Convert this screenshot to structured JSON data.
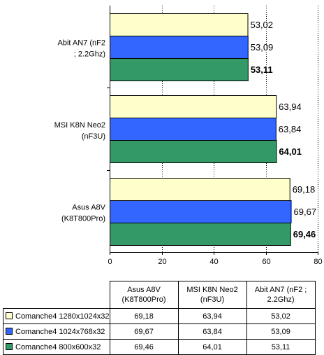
{
  "chart_data": {
    "type": "bar",
    "orientation": "horizontal",
    "categories": [
      "Abit AN7 (nF2 ; 2.2Ghz)",
      "MSI K8N Neo2 (nF3U)",
      "Asus A8V (K8T800Pro)"
    ],
    "category_label_lines": [
      [
        "Abit AN7 (nF2",
        "; 2.2Ghz)"
      ],
      [
        "MSI K8N Neo2",
        "(nF3U)"
      ],
      [
        "Asus A8V",
        "(K8T800Pro)"
      ]
    ],
    "series": [
      {
        "name": "Comanche4  1280x1024x32",
        "color": "#ffffcc",
        "values": [
          53.02,
          63.94,
          69.18
        ],
        "labels": [
          "53,02",
          "63,94",
          "69,18"
        ]
      },
      {
        "name": "Comanche4  1024x768x32",
        "color": "#3366ff",
        "values": [
          53.09,
          63.84,
          69.67
        ],
        "labels": [
          "53,09",
          "63,84",
          "69,67"
        ]
      },
      {
        "name": "Comanche4  800x600x32",
        "color": "#339966",
        "values": [
          53.11,
          64.01,
          69.46
        ],
        "labels": [
          "53,11",
          "64,01",
          "69,46"
        ]
      }
    ],
    "xlim": [
      0,
      80
    ],
    "xticks": [
      0,
      20,
      40,
      60,
      80
    ],
    "grid": "vertical dotted",
    "legend": "data table below chart"
  },
  "table": {
    "headers": [
      [
        "Asus A8V",
        "(K8T800Pro)"
      ],
      [
        "MSI K8N Neo2",
        "(nF3U)"
      ],
      [
        "Abit AN7 (nF2 ;",
        "2.2Ghz)"
      ]
    ],
    "rows": [
      {
        "legend": "Comanche4  1280x1024x32",
        "color": "#ffffcc",
        "cells": [
          "69,18",
          "63,94",
          "53,02"
        ]
      },
      {
        "legend": "Comanche4  1024x768x32",
        "color": "#3366ff",
        "cells": [
          "69,67",
          "63,84",
          "53,09"
        ]
      },
      {
        "legend": "Comanche4  800x600x32",
        "color": "#339966",
        "cells": [
          "69,46",
          "64,01",
          "53,11"
        ]
      }
    ]
  }
}
